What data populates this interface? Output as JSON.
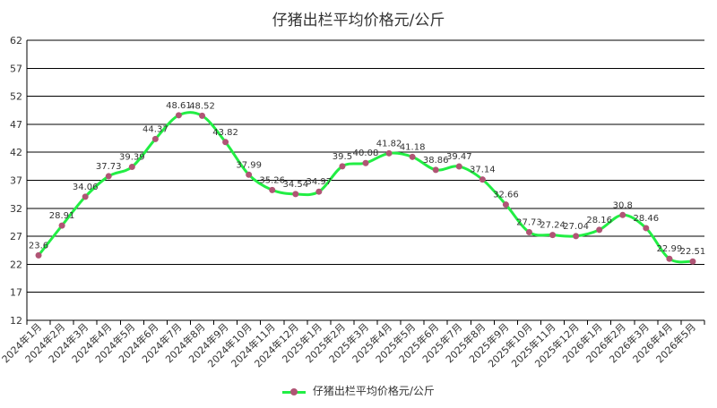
{
  "chart_data": {
    "type": "line",
    "title": "仔猪出栏平均价格元/公斤",
    "categories": [
      "2024年1月",
      "2024年2月",
      "2024年3月",
      "2024年4月",
      "2024年5月",
      "2024年6月",
      "2024年7月",
      "2024年8月",
      "2024年9月",
      "2024年10月",
      "2024年11月",
      "2024年12月",
      "2025年1月",
      "2025年2月",
      "2025年3月",
      "2025年4月",
      "2025年5月",
      "2025年6月",
      "2025年7月",
      "2025年8月",
      "2025年9月",
      "2025年10月",
      "2025年11月",
      "2025年12月",
      "2026年1月",
      "2026年2月",
      "2026年3月",
      "2026年4月",
      "2026年5月"
    ],
    "series": [
      {
        "name": "仔猪出栏平均价格元/公斤",
        "values": [
          23.6,
          28.91,
          34.06,
          37.73,
          39.39,
          44.37,
          48.61,
          48.52,
          43.82,
          37.99,
          35.26,
          34.54,
          34.97,
          39.5,
          40.08,
          41.82,
          41.18,
          38.86,
          39.47,
          37.14,
          32.66,
          27.73,
          27.24,
          27.04,
          28.16,
          30.8,
          28.46,
          22.99,
          22.51
        ],
        "labels": [
          "23.6",
          "28.91",
          "34.06",
          "37.73",
          "39.39",
          "44.37",
          "48.61",
          "48.52",
          "43.82",
          "37.99",
          "35.26",
          "34.54",
          "34.97",
          "39.5",
          "40.08",
          "41.82",
          "41.18",
          "38.86",
          "39.47",
          "37.14",
          "32.66",
          "27.73",
          "27.24",
          "27.04",
          "28.16",
          "30.8",
          "28.46",
          "22.99",
          "22.51"
        ]
      }
    ],
    "yticks": [
      "12",
      "17",
      "22",
      "27",
      "32",
      "37",
      "42",
      "47",
      "52",
      "57",
      "62"
    ],
    "ylim": [
      12,
      62
    ],
    "grid": "horizontal",
    "legend": "bottom-center",
    "colors": {
      "line": "#22ee44",
      "marker": "#b05575",
      "grid": "#000000"
    }
  }
}
